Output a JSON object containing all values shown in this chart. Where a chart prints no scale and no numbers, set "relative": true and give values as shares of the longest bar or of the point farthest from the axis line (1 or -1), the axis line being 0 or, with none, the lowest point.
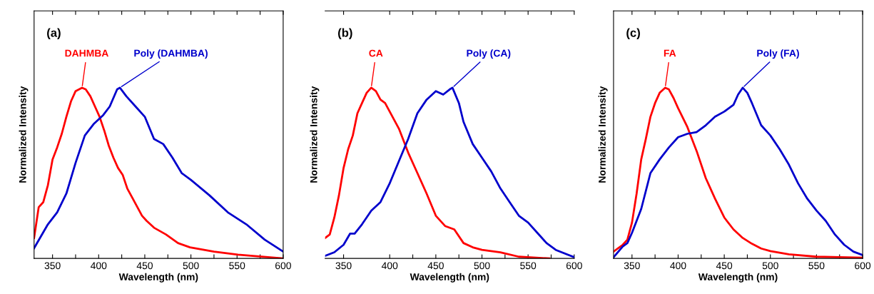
{
  "chart_data": [
    {
      "type": "line",
      "title": "(a)",
      "xlabel": "Wavelength (nm)",
      "ylabel": "Normalized Intensity",
      "relative": true,
      "xlim": [
        330,
        600
      ],
      "xticks": [
        350,
        {
          "value": 375,
          "label": null
        },
        400,
        {
          "value": 425,
          "label": null
        },
        450,
        {
          "value": 475,
          "label": null
        },
        500,
        {
          "value": 525,
          "label": null
        },
        550,
        {
          "value": 575,
          "label": null
        },
        600
      ],
      "tick_labels": "x",
      "series": [
        {
          "name": "DAHMBA",
          "color": "#ff0000",
          "x": [
            330,
            335,
            340,
            345,
            350,
            355,
            360,
            365,
            370,
            375,
            382,
            386,
            391,
            396,
            401,
            406,
            411,
            416,
            421,
            426,
            431,
            437,
            442,
            447,
            452,
            460,
            473,
            486,
            499,
            525,
            551,
            600
          ],
          "values": [
            0.12,
            0.3,
            0.33,
            0.43,
            0.58,
            0.65,
            0.73,
            0.83,
            0.92,
            0.98,
            1.0,
            0.99,
            0.95,
            0.89,
            0.83,
            0.75,
            0.66,
            0.59,
            0.53,
            0.49,
            0.41,
            0.35,
            0.3,
            0.25,
            0.22,
            0.18,
            0.14,
            0.09,
            0.065,
            0.04,
            0.022,
            0.0
          ]
        },
        {
          "name": "Poly (DAHMBA)",
          "color": "#0000cc",
          "x": [
            330,
            345,
            355,
            365,
            375,
            385,
            395,
            405,
            412,
            420,
            423,
            430,
            440,
            450,
            460,
            470,
            480,
            490,
            500,
            520,
            540,
            560,
            580,
            600
          ],
          "values": [
            0.06,
            0.2,
            0.27,
            0.38,
            0.56,
            0.72,
            0.79,
            0.84,
            0.89,
            0.99,
            1.0,
            0.95,
            0.89,
            0.83,
            0.7,
            0.67,
            0.59,
            0.5,
            0.46,
            0.37,
            0.27,
            0.2,
            0.11,
            0.04
          ]
        }
      ]
    },
    {
      "type": "line",
      "title": "(b)",
      "xlabel": "Wavelength (nm)",
      "ylabel": "Normalized Intensity",
      "relative": true,
      "xlim": [
        330,
        600
      ],
      "xticks": [
        350,
        400,
        {
          "value": 425,
          "label": null
        },
        450,
        {
          "value": 475,
          "label": null
        },
        500,
        {
          "value": 525,
          "label": null
        },
        550,
        {
          "value": 575,
          "label": null
        },
        600
      ],
      "tick_labels": "x",
      "series": [
        {
          "name": "CA",
          "color": "#ff0000",
          "x": [
            330,
            335,
            340,
            345,
            350,
            355,
            360,
            365,
            370,
            375,
            380,
            385,
            390,
            395,
            400,
            410,
            420,
            430,
            440,
            450,
            460,
            470,
            480,
            490,
            500,
            520,
            540,
            573
          ],
          "values": [
            0.12,
            0.14,
            0.24,
            0.37,
            0.53,
            0.64,
            0.72,
            0.85,
            0.91,
            0.97,
            1.0,
            0.98,
            0.93,
            0.91,
            0.86,
            0.76,
            0.62,
            0.5,
            0.38,
            0.25,
            0.19,
            0.17,
            0.09,
            0.065,
            0.05,
            0.036,
            0.01,
            0.0
          ]
        },
        {
          "name": "Poly (CA)",
          "color": "#0000cc",
          "x": [
            330,
            340,
            350,
            357,
            362,
            370,
            380,
            390,
            400,
            410,
            420,
            430,
            440,
            450,
            458,
            465,
            468,
            475,
            480,
            490,
            500,
            510,
            520,
            530,
            540,
            550,
            560,
            570,
            580,
            600
          ],
          "values": [
            0.015,
            0.036,
            0.08,
            0.145,
            0.145,
            0.2,
            0.28,
            0.33,
            0.44,
            0.57,
            0.7,
            0.85,
            0.93,
            0.98,
            0.96,
            0.99,
            1.0,
            0.91,
            0.8,
            0.67,
            0.59,
            0.51,
            0.41,
            0.33,
            0.25,
            0.21,
            0.15,
            0.09,
            0.05,
            0.007
          ]
        }
      ]
    },
    {
      "type": "line",
      "title": "(c)",
      "xlabel": "Wavelength (nm)",
      "ylabel": "Normalized Intensity",
      "relative": true,
      "xlim": [
        330,
        600
      ],
      "xticks": [
        350,
        {
          "value": 375,
          "label": null
        },
        400,
        {
          "value": 425,
          "label": null
        },
        450,
        {
          "value": 475,
          "label": null
        },
        500,
        {
          "value": 525,
          "label": null
        },
        550,
        {
          "value": 575,
          "label": null
        },
        600
      ],
      "tick_labels": "x",
      "series": [
        {
          "name": "FA",
          "color": "#ff0000",
          "x": [
            330,
            340,
            345,
            350,
            355,
            360,
            365,
            370,
            375,
            380,
            386,
            390,
            395,
            400,
            410,
            420,
            430,
            440,
            450,
            460,
            470,
            480,
            490,
            500,
            520,
            550,
            600
          ],
          "values": [
            0.04,
            0.08,
            0.11,
            0.21,
            0.38,
            0.58,
            0.7,
            0.83,
            0.91,
            0.97,
            1.0,
            0.99,
            0.94,
            0.88,
            0.77,
            0.63,
            0.47,
            0.35,
            0.24,
            0.17,
            0.12,
            0.086,
            0.058,
            0.043,
            0.024,
            0.01,
            0.004
          ]
        },
        {
          "name": "Poly (FA)",
          "color": "#0000cc",
          "x": [
            330,
            340,
            345,
            350,
            360,
            370,
            380,
            390,
            400,
            410,
            420,
            430,
            440,
            450,
            460,
            465,
            470,
            475,
            480,
            490,
            500,
            510,
            520,
            530,
            540,
            550,
            560,
            570,
            580,
            590,
            600
          ],
          "values": [
            0.007,
            0.07,
            0.09,
            0.15,
            0.29,
            0.5,
            0.58,
            0.65,
            0.71,
            0.73,
            0.74,
            0.78,
            0.83,
            0.86,
            0.9,
            0.96,
            1.0,
            0.97,
            0.91,
            0.78,
            0.72,
            0.64,
            0.55,
            0.44,
            0.35,
            0.28,
            0.22,
            0.14,
            0.08,
            0.04,
            0.02
          ]
        }
      ]
    }
  ]
}
